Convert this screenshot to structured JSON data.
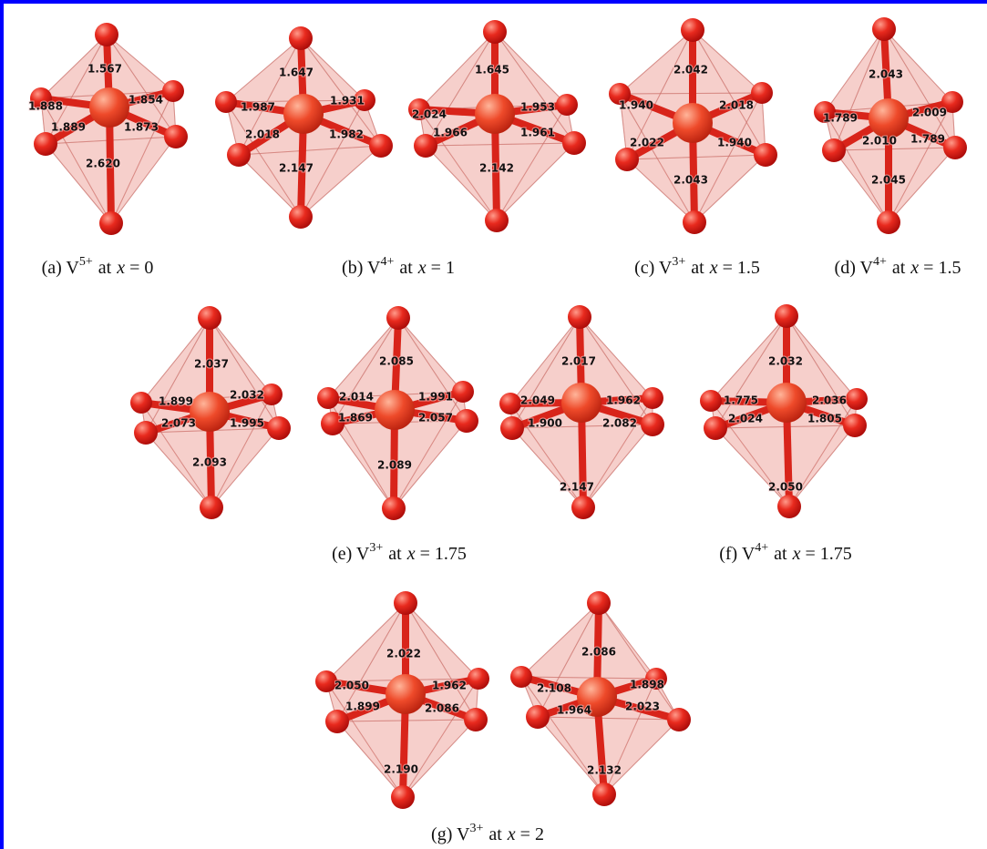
{
  "panels": [
    {
      "caption": {
        "lead": "(a) V",
        "charge": "5+",
        "mid": "at",
        "variable": "x",
        "tail": "= 0"
      },
      "octahedra": [
        {
          "bonds": [
            "1.567",
            "1.888",
            "1.854",
            "1.889",
            "1.873",
            "2.620"
          ]
        }
      ]
    },
    {
      "caption": {
        "lead": "(b) V",
        "charge": "4+",
        "mid": "at",
        "variable": "x",
        "tail": "= 1"
      },
      "octahedra": [
        {
          "bonds": [
            "1.647",
            "1.987",
            "1.931",
            "2.018",
            "1.982",
            "2.147"
          ]
        },
        {
          "bonds": [
            "1.645",
            "2.024",
            "1.953",
            "1.966",
            "1.961",
            "2.142"
          ]
        }
      ]
    },
    {
      "caption": {
        "lead": "(c) V",
        "charge": "3+",
        "mid": "at",
        "variable": "x",
        "tail": "= 1.5"
      },
      "octahedra": [
        {
          "bonds": [
            "2.042",
            "1.940",
            "2.018",
            "2.022",
            "1.940",
            "2.043"
          ]
        }
      ]
    },
    {
      "caption": {
        "lead": "(d) V",
        "charge": "4+",
        "mid": "at",
        "variable": "x",
        "tail": "= 1.5"
      },
      "octahedra": [
        {
          "bonds": [
            "2.043",
            "1.789",
            "2.009",
            "2.010",
            "1.789",
            "2.045"
          ]
        }
      ]
    },
    {
      "caption": {
        "lead": "(e) V",
        "charge": "3+",
        "mid": "at",
        "variable": "x",
        "tail": "= 1.75"
      },
      "octahedra": [
        {
          "bonds": [
            "2.037",
            "1.899",
            "2.032",
            "2.073",
            "1.995",
            "2.093"
          ]
        },
        {
          "bonds": [
            "2.085",
            "2.014",
            "1.991",
            "1.869",
            "2.057",
            "2.089"
          ]
        }
      ]
    },
    {
      "caption": {
        "lead": "(f) V",
        "charge": "4+",
        "mid": "at",
        "variable": "x",
        "tail": "= 1.75"
      },
      "octahedra": [
        {
          "bonds": [
            "2.017",
            "2.049",
            "1.962",
            "1.900",
            "2.082",
            "2.147"
          ]
        },
        {
          "bonds": [
            "2.032",
            "1.775",
            "2.036",
            "2.024",
            "1.805",
            "2.050"
          ]
        }
      ]
    },
    {
      "caption": {
        "lead": "(g) V",
        "charge": "3+",
        "mid": "at",
        "variable": "x",
        "tail": "= 2"
      },
      "octahedra": [
        {
          "bonds": [
            "2.022",
            "2.050",
            "1.962",
            "1.899",
            "2.086",
            "2.190"
          ]
        },
        {
          "bonds": [
            "2.086",
            "2.108",
            "1.898",
            "1.964",
            "2.023",
            "2.132"
          ]
        }
      ]
    }
  ]
}
